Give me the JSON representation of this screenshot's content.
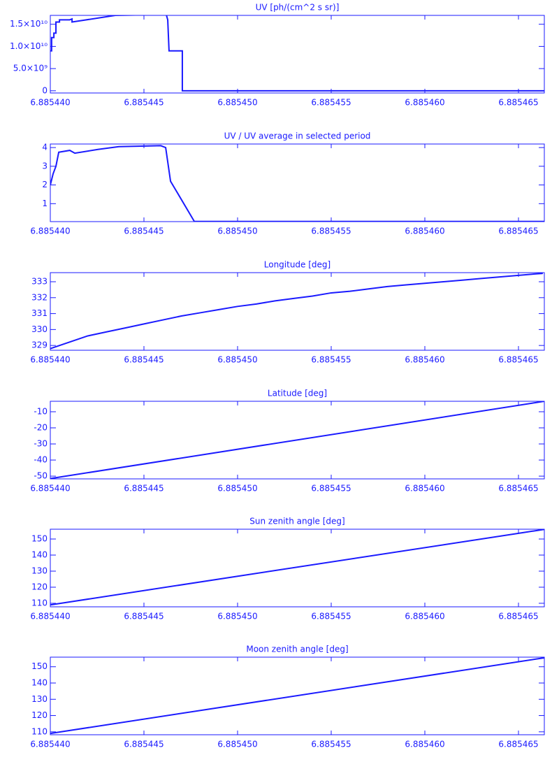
{
  "chart_data": [
    {
      "type": "line",
      "title": "UV [ph/(cm^2 s sr)]",
      "color": "#1a1aff",
      "x": [
        6.88544,
        6.88544007,
        6.88544007,
        6.88544019,
        6.88544019,
        6.8854403,
        6.8854403,
        6.88544049,
        6.88544049,
        6.88544104,
        6.88544116,
        6.88544116,
        6.88544347,
        6.88544619,
        6.88544627,
        6.88544634,
        6.88544705,
        6.88544705,
        6.88546638
      ],
      "values": [
        9000000000.0,
        9000000000.0,
        12000000000.0,
        12000000000.0,
        13000000000.0,
        13000000000.0,
        15500000000.0,
        15500000000.0,
        16000000000.0,
        16000000000.0,
        16200000000.0,
        15500000000.0,
        17000000000.0,
        17200000000.0,
        16000000000.0,
        9000000000.0,
        9000000000.0,
        0,
        0
      ],
      "xlim": [
        6.88544,
        6.88546638
      ],
      "ylim": [
        -500000000.0,
        17000000000.0
      ],
      "xticks": [
        {
          "value": 6.88544,
          "label": "6.885440"
        },
        {
          "value": 6.885445,
          "label": "6.885445"
        },
        {
          "value": 6.88545,
          "label": "6.885450"
        },
        {
          "value": 6.885455,
          "label": "6.885455"
        },
        {
          "value": 6.88546,
          "label": "6.885460"
        },
        {
          "value": 6.885465,
          "label": "6.885465"
        }
      ],
      "yticks": [
        0,
        {
          "value": 5000000000.0,
          "label": "5.0×10⁹"
        },
        {
          "value": 10000000000.0,
          "label": "1.0×10¹⁰"
        },
        {
          "value": 15000000000.0,
          "label": "1.5×10¹⁰"
        }
      ]
    },
    {
      "type": "line",
      "title": "UV / UV average in selected period",
      "color": "#1a1aff",
      "x": [
        6.88544,
        6.88544015,
        6.8854403,
        6.88544045,
        6.88544104,
        6.88544131,
        6.88544254,
        6.88544366,
        6.8854459,
        6.88544616,
        6.88544642,
        6.88544769,
        6.88546638
      ],
      "values": [
        2.0,
        2.6,
        3.0,
        3.75,
        3.85,
        3.7,
        3.9,
        4.05,
        4.1,
        4.0,
        2.2,
        0.05,
        0.05
      ],
      "xlim": [
        6.88544,
        6.88546638
      ],
      "ylim": [
        0.04,
        4.19
      ],
      "xticks": [
        {
          "value": 6.88544,
          "label": "6.885440"
        },
        {
          "value": 6.885445,
          "label": "6.885445"
        },
        {
          "value": 6.88545,
          "label": "6.885450"
        },
        {
          "value": 6.885455,
          "label": "6.885455"
        },
        {
          "value": 6.88546,
          "label": "6.885460"
        },
        {
          "value": 6.885465,
          "label": "6.885465"
        }
      ],
      "yticks": [
        1,
        2,
        3,
        4
      ]
    },
    {
      "type": "line",
      "title": "Longitude [deg]",
      "color": "#1a1aff",
      "x": [
        6.88544,
        6.885441,
        6.885442,
        6.885443,
        6.885444,
        6.885445,
        6.885446,
        6.885447,
        6.885448,
        6.885449,
        6.88545,
        6.885451,
        6.885452,
        6.885453,
        6.885454,
        6.885455,
        6.885456,
        6.885457,
        6.885458,
        6.885459,
        6.88546,
        6.885461,
        6.885462,
        6.885463,
        6.885464,
        6.885465,
        6.885466,
        6.8854663
      ],
      "values": [
        328.8,
        329.2,
        329.6,
        329.85,
        330.1,
        330.35,
        330.6,
        330.85,
        331.05,
        331.25,
        331.45,
        331.6,
        331.8,
        331.95,
        332.1,
        332.3,
        332.4,
        332.55,
        332.7,
        332.8,
        332.9,
        333.0,
        333.1,
        333.2,
        333.3,
        333.4,
        333.5,
        333.52
      ],
      "xlim": [
        6.88544,
        6.88546638
      ],
      "ylim": [
        328.7,
        333.57
      ],
      "xticks": [
        {
          "value": 6.88544,
          "label": "6.885440"
        },
        {
          "value": 6.885445,
          "label": "6.885445"
        },
        {
          "value": 6.88545,
          "label": "6.885450"
        },
        {
          "value": 6.885455,
          "label": "6.885455"
        },
        {
          "value": 6.88546,
          "label": "6.885460"
        },
        {
          "value": 6.885465,
          "label": "6.885465"
        }
      ],
      "yticks": [
        329,
        330,
        331,
        332,
        333
      ]
    },
    {
      "type": "line",
      "title": "Latitude [deg]",
      "color": "#1a1aff",
      "x": [
        6.88544,
        6.88546638
      ],
      "values": [
        -51.5,
        -3.5
      ],
      "xlim": [
        6.88544,
        6.88546638
      ],
      "ylim": [
        -51.7,
        -3.5
      ],
      "xticks": [
        {
          "value": 6.88544,
          "label": "6.885440"
        },
        {
          "value": 6.885445,
          "label": "6.885445"
        },
        {
          "value": 6.88545,
          "label": "6.885450"
        },
        {
          "value": 6.885455,
          "label": "6.885455"
        },
        {
          "value": 6.88546,
          "label": "6.885460"
        },
        {
          "value": 6.885465,
          "label": "6.885465"
        }
      ],
      "yticks": [
        -50,
        -40,
        -30,
        -20,
        -10
      ]
    },
    {
      "type": "line",
      "title": "Sun zenith angle [deg]",
      "color": "#1a1aff",
      "x": [
        6.88544,
        6.88546638
      ],
      "values": [
        109,
        156
      ],
      "xlim": [
        6.88544,
        6.88546638
      ],
      "ylim": [
        107.8,
        156.1
      ],
      "xticks": [
        {
          "value": 6.88544,
          "label": "6.885440"
        },
        {
          "value": 6.885445,
          "label": "6.885445"
        },
        {
          "value": 6.88545,
          "label": "6.885450"
        },
        {
          "value": 6.885455,
          "label": "6.885455"
        },
        {
          "value": 6.88546,
          "label": "6.885460"
        },
        {
          "value": 6.885465,
          "label": "6.885465"
        }
      ],
      "yticks": [
        110,
        120,
        130,
        140,
        150
      ]
    },
    {
      "type": "line",
      "title": "Moon zenith angle [deg]",
      "color": "#1a1aff",
      "x": [
        6.88544,
        6.88546638
      ],
      "values": [
        109,
        155.5
      ],
      "xlim": [
        6.88544,
        6.88546638
      ],
      "ylim": [
        108.2,
        155.9
      ],
      "xticks": [
        {
          "value": 6.88544,
          "label": "6.885440"
        },
        {
          "value": 6.885445,
          "label": "6.885445"
        },
        {
          "value": 6.88545,
          "label": "6.885450"
        },
        {
          "value": 6.885455,
          "label": "6.885455"
        },
        {
          "value": 6.88546,
          "label": "6.885460"
        },
        {
          "value": 6.885465,
          "label": "6.885465"
        }
      ],
      "yticks": [
        110,
        120,
        130,
        140,
        150
      ]
    }
  ]
}
